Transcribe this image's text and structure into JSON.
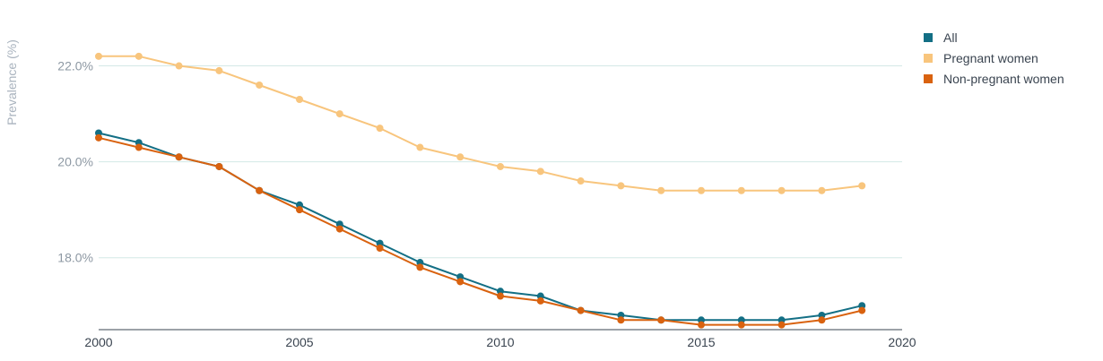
{
  "chart_data": {
    "type": "line",
    "title": "",
    "xlabel": "",
    "ylabel": "Prevalence (%)",
    "x": [
      2000,
      2001,
      2002,
      2003,
      2004,
      2005,
      2006,
      2007,
      2008,
      2009,
      2010,
      2011,
      2012,
      2013,
      2014,
      2015,
      2016,
      2017,
      2018,
      2019
    ],
    "xlim": [
      2000,
      2020
    ],
    "ylim": [
      16.5,
      23.0
    ],
    "x_ticks": [
      2000,
      2005,
      2010,
      2015,
      2020
    ],
    "x_tick_labels": [
      "2000",
      "2005",
      "2010",
      "2015",
      "2020"
    ],
    "y_ticks": [
      18,
      20,
      22
    ],
    "y_tick_labels": [
      "18.0%",
      "20.0%",
      "22.0%"
    ],
    "grid": "horizontal",
    "legend_position": "top-right",
    "series": [
      {
        "name": "All",
        "color": "#136f85",
        "values": [
          20.6,
          20.4,
          20.1,
          19.9,
          19.4,
          19.1,
          18.7,
          18.3,
          17.9,
          17.6,
          17.3,
          17.2,
          16.9,
          16.8,
          16.7,
          16.7,
          16.7,
          16.7,
          16.8,
          17.0
        ]
      },
      {
        "name": "Pregnant women",
        "color": "#f8c57d",
        "values": [
          22.2,
          22.2,
          22.0,
          21.9,
          21.6,
          21.3,
          21.0,
          20.7,
          20.3,
          20.1,
          19.9,
          19.8,
          19.6,
          19.5,
          19.4,
          19.4,
          19.4,
          19.4,
          19.4,
          19.5
        ]
      },
      {
        "name": "Non-pregnant women",
        "color": "#d9620f",
        "values": [
          20.5,
          20.3,
          20.1,
          19.9,
          19.4,
          19.0,
          18.6,
          18.2,
          17.8,
          17.5,
          17.2,
          17.1,
          16.9,
          16.7,
          16.7,
          16.6,
          16.6,
          16.6,
          16.7,
          16.9
        ]
      }
    ]
  }
}
